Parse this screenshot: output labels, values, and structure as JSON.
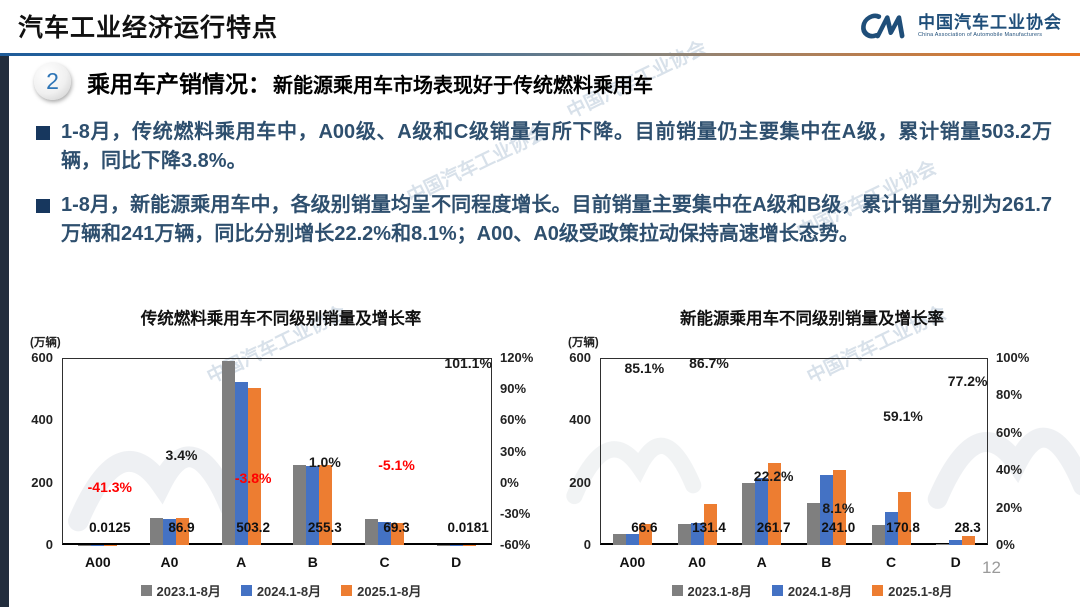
{
  "slide": {
    "title": "汽车工业经济运行特点",
    "page_number": "12"
  },
  "logo": {
    "name_cn": "中国汽车工业协会",
    "name_en": "China Association of Automobile Manufacturers"
  },
  "watermark": {
    "text": "中国汽车工业协会"
  },
  "section": {
    "number": "2",
    "title": "乘用车产销情况：",
    "subtitle": "新能源乘用车市场表现好于传统燃料乘用车"
  },
  "bullets": [
    "1-8月，传统燃料乘用车中，A00级、A级和C级销量有所下降。目前销量仍主要集中在A级，累计销量503.2万辆，同比下降3.8%。",
    "1-8月，新能源乘用车中，各级别销量均呈不同程度增长。目前销量主要集中在A级和B级，累计销量分别为261.7万辆和241万辆，同比分别增长22.2%和8.1%；A00、A0级受政策拉动保持高速增长态势。"
  ],
  "colors": {
    "series_2023": "#7f7f7f",
    "series_2024": "#4472c4",
    "series_2025": "#ed7d31",
    "negative_label": "#ff0000",
    "positive_label": "#1a1a1a",
    "accent_blue": "#1f4e79"
  },
  "chart_data": [
    {
      "type": "bar",
      "title": "传统燃料乘用车不同级别销量及增长率",
      "unit_label": "(万辆)",
      "categories": [
        "A00",
        "A0",
        "A",
        "B",
        "C",
        "D"
      ],
      "series": [
        {
          "name": "2023.1-8月",
          "values": [
            0.03,
            86,
            590,
            258,
            83,
            0.02
          ]
        },
        {
          "name": "2024.1-8月",
          "values": [
            0.021,
            84.0,
            523.1,
            252.8,
            73.0,
            0.009
          ]
        },
        {
          "name": "2025.1-8月",
          "values": [
            0.0125,
            86.9,
            503.2,
            255.3,
            69.3,
            0.0181
          ]
        }
      ],
      "value_labels": [
        "0.0125",
        "86.9",
        "503.2",
        "255.3",
        "69.3",
        "0.0181"
      ],
      "growth_labels": [
        {
          "text": "-41.3%",
          "negative": true
        },
        {
          "text": "3.4%",
          "negative": false
        },
        {
          "text": "-3.8%",
          "negative": true
        },
        {
          "text": "1.0%",
          "negative": false
        },
        {
          "text": "-5.1%",
          "negative": true
        },
        {
          "text": "101.1%",
          "negative": false
        }
      ],
      "y_left": {
        "ticks": [
          "600",
          "400",
          "200",
          "0"
        ],
        "max": 600
      },
      "y_right": {
        "ticks": [
          "120%",
          "90%",
          "60%",
          "30%",
          "0%",
          "-30%",
          "-60%"
        ]
      },
      "legend": [
        "2023.1-8月",
        "2024.1-8月",
        "2025.1-8月"
      ],
      "legend_position": "bottom",
      "grid": false
    },
    {
      "type": "bar",
      "title": "新能源乘用车不同级别销量及增长率",
      "unit_label": "(万辆)",
      "categories": [
        "A00",
        "A0",
        "A",
        "B",
        "C",
        "D"
      ],
      "series": [
        {
          "name": "2023.1-8月",
          "values": [
            36,
            66,
            200,
            135,
            63,
            4
          ]
        },
        {
          "name": "2024.1-8月",
          "values": [
            36.0,
            70.4,
            214.2,
            223.0,
            107.4,
            16.0
          ]
        },
        {
          "name": "2025.1-8月",
          "values": [
            66.6,
            131.4,
            261.7,
            241.0,
            170.8,
            28.3
          ]
        }
      ],
      "value_labels": [
        "66.6",
        "131.4",
        "261.7",
        "241.0",
        "170.8",
        "28.3"
      ],
      "growth_labels": [
        {
          "text": "85.1%",
          "negative": false
        },
        {
          "text": "86.7%",
          "negative": false
        },
        {
          "text": "22.2%",
          "negative": false
        },
        {
          "text": "8.1%",
          "negative": false
        },
        {
          "text": "59.1%",
          "negative": false
        },
        {
          "text": "77.2%",
          "negative": false
        }
      ],
      "y_left": {
        "ticks": [
          "600",
          "400",
          "200",
          "0"
        ],
        "max": 600
      },
      "y_right": {
        "ticks": [
          "100%",
          "80%",
          "60%",
          "40%",
          "20%",
          "0%"
        ]
      },
      "legend": [
        "2023.1-8月",
        "2024.1-8月",
        "2025.1-8月"
      ],
      "legend_position": "bottom",
      "grid": false
    }
  ]
}
